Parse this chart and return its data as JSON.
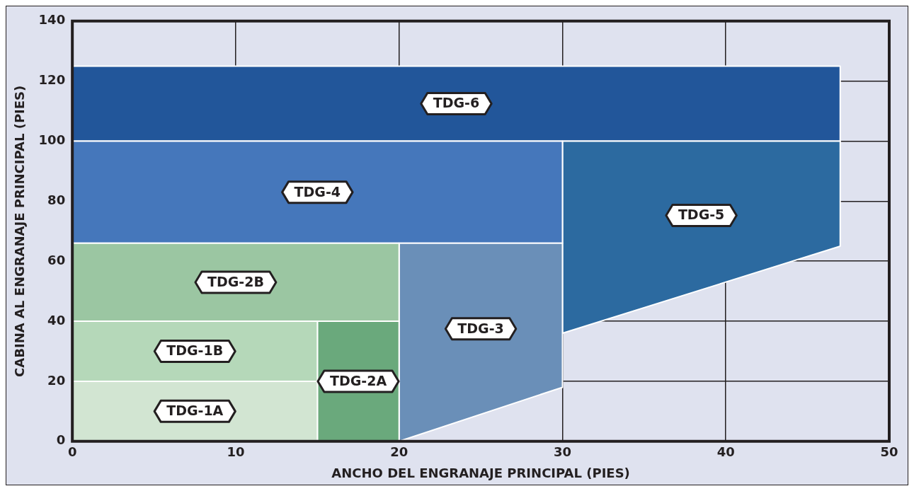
{
  "chart_data": {
    "type": "area",
    "xlabel": "ANCHO DEL ENGRANAJE PRINCIPAL (PIES)",
    "ylabel": "CABINA AL ENGRANAJE PRINCIPAL (PIES)",
    "xlim": [
      0,
      50
    ],
    "xticks": [
      0,
      10,
      20,
      30,
      40,
      50
    ],
    "ylim": [
      0,
      140
    ],
    "yticks": [
      0,
      20,
      40,
      60,
      80,
      100,
      120,
      140
    ],
    "grid": true,
    "legend": false,
    "series": [
      {
        "name": "TDG-1A",
        "color": "#d2e5d2",
        "x": [
          0,
          15,
          15,
          0
        ],
        "values": [
          0,
          0,
          20,
          20
        ]
      },
      {
        "name": "TDG-1B",
        "color": "#b5d8b9",
        "x": [
          0,
          15,
          15,
          0
        ],
        "values": [
          20,
          20,
          40,
          40
        ]
      },
      {
        "name": "TDG-2A",
        "color": "#6aa97c",
        "x": [
          15,
          20,
          20,
          15
        ],
        "values": [
          0,
          0,
          40,
          40
        ]
      },
      {
        "name": "TDG-2B",
        "color": "#9bc6a2",
        "x": [
          0,
          20,
          20,
          0
        ],
        "values": [
          40,
          40,
          66,
          66
        ]
      },
      {
        "name": "TDG-3",
        "color": "#6a8fb8",
        "x": [
          20,
          30,
          30,
          20
        ],
        "values": [
          0,
          18,
          66,
          66
        ]
      },
      {
        "name": "TDG-4",
        "color": "#4577bb",
        "x": [
          0,
          30,
          30,
          0
        ],
        "values": [
          66,
          66,
          100,
          100
        ]
      },
      {
        "name": "TDG-5",
        "color": "#2c6aa0",
        "x": [
          30,
          47,
          47,
          30
        ],
        "values": [
          36,
          65,
          100,
          100
        ]
      },
      {
        "name": "TDG-6",
        "color": "#22569a",
        "x": [
          0,
          47,
          47,
          0
        ],
        "values": [
          100,
          100,
          125,
          125
        ]
      }
    ]
  }
}
